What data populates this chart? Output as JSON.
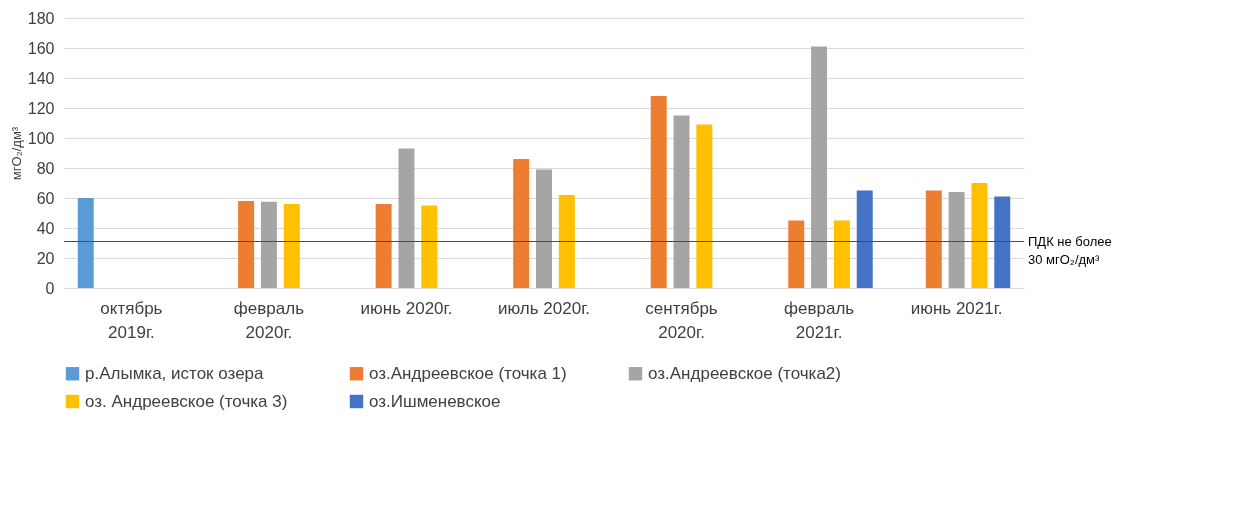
{
  "chart_data": {
    "type": "bar",
    "ylabel": "мгО₂/дм³",
    "categories": [
      "октябрь 2019г.",
      "февраль 2020г.",
      "июнь 2020г.",
      "июль 2020г.",
      "сентябрь 2020г.",
      "февраль 2021г.",
      "июнь 2021г."
    ],
    "series": [
      {
        "name": "р.Алымка, исток озера",
        "color": "#5b9bd5",
        "values": [
          60,
          null,
          null,
          null,
          null,
          null,
          null
        ]
      },
      {
        "name": "оз.Андреевское (точка 1)",
        "color": "#ed7d31",
        "values": [
          null,
          58,
          56,
          86,
          128,
          45,
          65
        ]
      },
      {
        "name": "оз.Андреевское (точка2)",
        "color": "#a5a5a5",
        "values": [
          null,
          57.5,
          93,
          79,
          115,
          161,
          64
        ]
      },
      {
        "name": "оз. Андреевское (точка 3)",
        "color": "#ffc000",
        "values": [
          null,
          56,
          55,
          62,
          109,
          45,
          70
        ]
      },
      {
        "name": "оз.Ишменевское",
        "color": "#4472c4",
        "values": [
          null,
          null,
          null,
          null,
          null,
          65,
          61
        ]
      }
    ],
    "ylim": [
      0,
      180
    ],
    "yticks": [
      0,
      20,
      40,
      60,
      80,
      100,
      120,
      140,
      160,
      180
    ],
    "grid": "y",
    "legend": "bottom",
    "ref_lines": [
      {
        "axis": "y",
        "value": 31,
        "label": "ПДК не более 30 мгО₂/дм³",
        "color": "#ff0000"
      }
    ]
  }
}
